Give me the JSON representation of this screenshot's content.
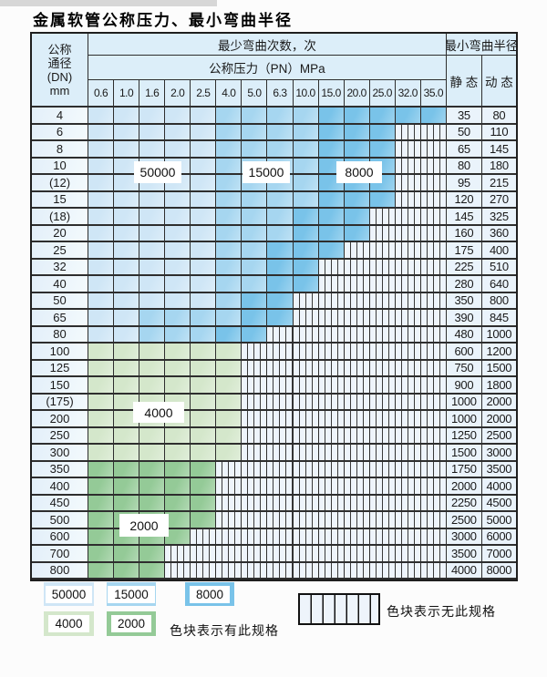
{
  "page": {
    "title": "金属软管公称压力、最小弯曲半径"
  },
  "colors": {
    "b1": "#cfe6f6",
    "b2": "#a6d6f0",
    "b3": "#79c3e9",
    "g1": "#d4e7cb",
    "g2": "#94ca97",
    "hatch_bg": "#eef4fb",
    "header_bg": "#dceef9",
    "dn_bg": "#e3eff9",
    "val_bg": "#eaf3fb"
  },
  "table": {
    "header": {
      "dn_lines": [
        "公称",
        "通径",
        "(DN)",
        "mm"
      ],
      "cycles": "最少弯曲次数，次",
      "radius": "最小弯曲半径",
      "pressure": "公称压力（PN）MPa",
      "static": "静 态",
      "dynamic": "动 态",
      "pressure_cols": [
        "0.6",
        "1.0",
        "1.6",
        "2.0",
        "2.5",
        "4.0",
        "5.0",
        "6.3",
        "10.0",
        "15.0",
        "20.0",
        "25.0",
        "32.0",
        "35.0"
      ]
    },
    "region_labels": {
      "r50000": "50000",
      "r15000": "15000",
      "r8000": "8000",
      "r4000": "4000",
      "r2000": "2000"
    },
    "rows": [
      {
        "dn": "4",
        "static": "35",
        "dynamic": "80",
        "spans": [
          [
            "b1",
            5
          ],
          [
            "b2",
            4
          ],
          [
            "b3",
            5
          ]
        ]
      },
      {
        "dn": "6",
        "static": "50",
        "dynamic": "110",
        "spans": [
          [
            "b1",
            5
          ],
          [
            "b2",
            4
          ],
          [
            "b3",
            3
          ],
          [
            "x",
            2
          ]
        ]
      },
      {
        "dn": "8",
        "static": "65",
        "dynamic": "145",
        "spans": [
          [
            "b1",
            5
          ],
          [
            "b2",
            4
          ],
          [
            "b3",
            3
          ],
          [
            "x",
            2
          ]
        ]
      },
      {
        "dn": "10",
        "static": "80",
        "dynamic": "180",
        "spans": [
          [
            "b1",
            5
          ],
          [
            "b2",
            4
          ],
          [
            "b3",
            3
          ],
          [
            "x",
            2
          ]
        ]
      },
      {
        "dn": "(12)",
        "static": "95",
        "dynamic": "215",
        "spans": [
          [
            "b1",
            5
          ],
          [
            "b2",
            4
          ],
          [
            "b3",
            3
          ],
          [
            "x",
            2
          ]
        ]
      },
      {
        "dn": "15",
        "static": "120",
        "dynamic": "270",
        "spans": [
          [
            "b1",
            5
          ],
          [
            "b2",
            4
          ],
          [
            "b3",
            3
          ],
          [
            "x",
            2
          ]
        ]
      },
      {
        "dn": "(18)",
        "static": "145",
        "dynamic": "325",
        "spans": [
          [
            "b1",
            5
          ],
          [
            "b2",
            3
          ],
          [
            "b3",
            3
          ],
          [
            "x",
            3
          ]
        ]
      },
      {
        "dn": "20",
        "static": "160",
        "dynamic": "360",
        "spans": [
          [
            "b1",
            5
          ],
          [
            "b2",
            3
          ],
          [
            "b3",
            3
          ],
          [
            "x",
            3
          ]
        ]
      },
      {
        "dn": "25",
        "static": "175",
        "dynamic": "400",
        "spans": [
          [
            "b1",
            5
          ],
          [
            "b2",
            2
          ],
          [
            "b3",
            3
          ],
          [
            "x",
            4
          ]
        ]
      },
      {
        "dn": "32",
        "static": "225",
        "dynamic": "510",
        "spans": [
          [
            "b1",
            5
          ],
          [
            "b2",
            2
          ],
          [
            "b3",
            2
          ],
          [
            "x",
            5
          ]
        ]
      },
      {
        "dn": "40",
        "static": "280",
        "dynamic": "640",
        "spans": [
          [
            "b1",
            5
          ],
          [
            "b2",
            2
          ],
          [
            "b3",
            2
          ],
          [
            "x",
            5
          ]
        ]
      },
      {
        "dn": "50",
        "static": "350",
        "dynamic": "800",
        "spans": [
          [
            "b1",
            5
          ],
          [
            "b2",
            1
          ],
          [
            "b3",
            2
          ],
          [
            "x",
            6
          ]
        ]
      },
      {
        "dn": "65",
        "static": "390",
        "dynamic": "845",
        "spans": [
          [
            "b1",
            2
          ],
          [
            "b2",
            4
          ],
          [
            "b3",
            2
          ],
          [
            "x",
            6
          ]
        ]
      },
      {
        "dn": "80",
        "static": "480",
        "dynamic": "1000",
        "spans": [
          [
            "b1",
            2
          ],
          [
            "b2",
            3
          ],
          [
            "b3",
            2
          ],
          [
            "x",
            7
          ]
        ]
      },
      {
        "dn": "100",
        "static": "600",
        "dynamic": "1200",
        "spans": [
          [
            "g1",
            6
          ],
          [
            "x",
            8
          ]
        ]
      },
      {
        "dn": "125",
        "static": "750",
        "dynamic": "1500",
        "spans": [
          [
            "g1",
            6
          ],
          [
            "x",
            8
          ]
        ]
      },
      {
        "dn": "150",
        "static": "900",
        "dynamic": "1800",
        "spans": [
          [
            "g1",
            6
          ],
          [
            "x",
            8
          ]
        ]
      },
      {
        "dn": "(175)",
        "static": "1000",
        "dynamic": "2000",
        "spans": [
          [
            "g1",
            6
          ],
          [
            "x",
            8
          ]
        ]
      },
      {
        "dn": "200",
        "static": "1000",
        "dynamic": "2000",
        "spans": [
          [
            "g1",
            6
          ],
          [
            "x",
            8
          ]
        ]
      },
      {
        "dn": "250",
        "static": "1250",
        "dynamic": "2500",
        "spans": [
          [
            "g1",
            6
          ],
          [
            "x",
            8
          ]
        ]
      },
      {
        "dn": "300",
        "static": "1500",
        "dynamic": "3000",
        "spans": [
          [
            "g1",
            6
          ],
          [
            "x",
            8
          ]
        ]
      },
      {
        "dn": "350",
        "static": "1750",
        "dynamic": "3500",
        "spans": [
          [
            "g2",
            5
          ],
          [
            "x",
            9
          ]
        ]
      },
      {
        "dn": "400",
        "static": "2000",
        "dynamic": "4000",
        "spans": [
          [
            "g2",
            5
          ],
          [
            "x",
            9
          ]
        ]
      },
      {
        "dn": "450",
        "static": "2250",
        "dynamic": "4500",
        "spans": [
          [
            "g2",
            5
          ],
          [
            "x",
            9
          ]
        ]
      },
      {
        "dn": "500",
        "static": "2500",
        "dynamic": "5000",
        "spans": [
          [
            "g2",
            5
          ],
          [
            "x",
            9
          ]
        ]
      },
      {
        "dn": "600",
        "static": "3000",
        "dynamic": "6000",
        "spans": [
          [
            "g2",
            4
          ],
          [
            "x",
            10
          ]
        ]
      },
      {
        "dn": "700",
        "static": "3500",
        "dynamic": "7000",
        "spans": [
          [
            "g2",
            3
          ],
          [
            "x",
            11
          ]
        ]
      },
      {
        "dn": "800",
        "static": "4000",
        "dynamic": "8000",
        "spans": [
          [
            "g2",
            3
          ],
          [
            "x",
            11
          ]
        ]
      }
    ]
  },
  "legend": {
    "swatches": [
      {
        "label": "50000",
        "type": "b1"
      },
      {
        "label": "15000",
        "type": "b2"
      },
      {
        "label": "8000",
        "type": "b3"
      },
      {
        "label": "4000",
        "type": "g1"
      },
      {
        "label": "2000",
        "type": "g2"
      }
    ],
    "has_spec_note": "色块表示有此规格",
    "no_spec_note": "色块表示无此规格"
  }
}
